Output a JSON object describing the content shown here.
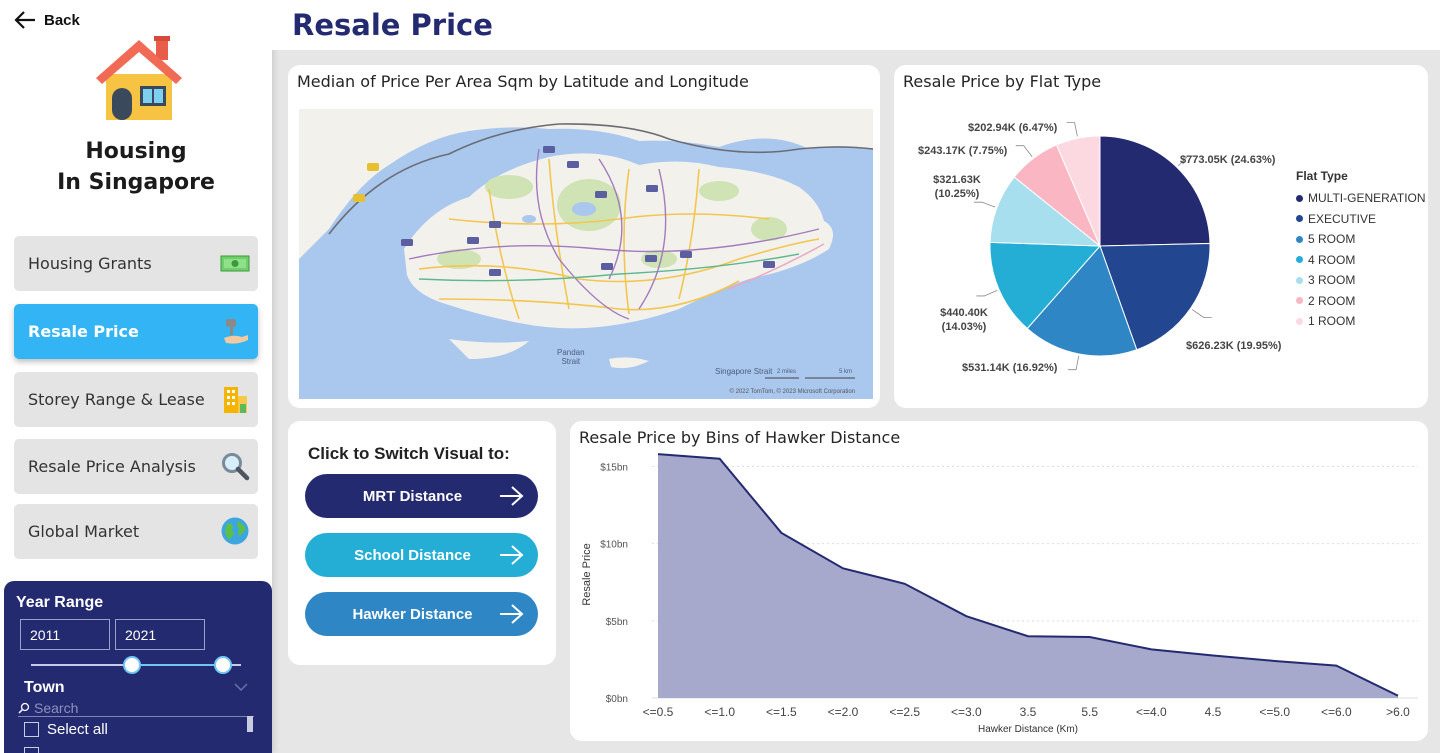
{
  "sidebar": {
    "back_label": "Back",
    "brand_line1": "Housing",
    "brand_line2": "In Singapore",
    "nav": [
      {
        "label": "Housing Grants",
        "icon": "money-icon",
        "active": false
      },
      {
        "label": "Resale Price",
        "icon": "hand-key-icon",
        "active": true
      },
      {
        "label": "Storey Range & Lease",
        "icon": "building-icon",
        "active": false
      },
      {
        "label": "Resale Price Analysis",
        "icon": "magnifier-icon",
        "active": false
      },
      {
        "label": "Global Market",
        "icon": "globe-icon",
        "active": false
      }
    ],
    "filters": {
      "year_range_title": "Year Range",
      "year_start": "2011",
      "year_end": "2021",
      "town_title": "Town",
      "search_placeholder": "Search",
      "select_all_label": "Select all"
    }
  },
  "header": {
    "title": "Resale Price"
  },
  "map_card": {
    "title": "Median of Price Per Area Sqm by Latitude and Longitude",
    "strait_1": "Pandan\nStrait",
    "strait_2": "Singapore Strait",
    "scale_miles": "2 miles",
    "scale_km": "5 km",
    "attribution": "© 2022 TomTom, © 2023 Microsoft Corporation"
  },
  "pie_card": {
    "title": "Resale Price by Flat Type",
    "legend_title": "Flat Type",
    "slices": [
      {
        "name": "MULTI-GENERATION",
        "label": "$773.05K (24.63%)",
        "percent": 24.63,
        "color": "#232a70"
      },
      {
        "name": "EXECUTIVE",
        "label": "$626.23K (19.95%)",
        "percent": 19.95,
        "color": "#22468f"
      },
      {
        "name": "5 ROOM",
        "label": "$531.14K (16.92%)",
        "percent": 16.92,
        "color": "#2f86c4"
      },
      {
        "name": "4 ROOM",
        "label": "$440.40K (14.03%)",
        "percent": 14.03,
        "color": "#24aed6"
      },
      {
        "name": "3 ROOM",
        "label": "$321.63K (10.25%)",
        "percent": 10.25,
        "color": "#a7dfee"
      },
      {
        "name": "2 ROOM",
        "label": "$243.17K (7.75%)",
        "percent": 7.75,
        "color": "#fbb6c3"
      },
      {
        "name": "1 ROOM",
        "label": "$202.94K (6.47%)",
        "percent": 6.47,
        "color": "#fcd9e0"
      }
    ]
  },
  "switch_card": {
    "title": "Click to Switch Visual to:",
    "buttons": [
      {
        "label": "MRT Distance",
        "color": "#232a70"
      },
      {
        "label": "School Distance",
        "color": "#24aed6"
      },
      {
        "label": "Hawker Distance",
        "color": "#2f86c4"
      }
    ]
  },
  "chart_data": {
    "type": "area",
    "title": "Resale Price by Bins of Hawker Distance",
    "xlabel": "Hawker Distance (Km)",
    "ylabel": "Resale Price",
    "categories": [
      "<=0.5",
      "<=1.0",
      "<=1.5",
      "<=2.0",
      "<=2.5",
      "<=3.0",
      "3.5",
      "5.5",
      "<=4.0",
      "4.5",
      "<=5.0",
      "<=6.0",
      ">6.0"
    ],
    "values": [
      15.8,
      15.5,
      10.7,
      8.4,
      7.4,
      5.3,
      4.0,
      3.95,
      3.15,
      2.75,
      2.4,
      2.1,
      0.15
    ],
    "unit": "bn",
    "yticks": [
      "$0bn",
      "$5bn",
      "$10bn",
      "$15bn"
    ],
    "ytick_values": [
      0,
      5,
      10,
      15
    ],
    "ylim": [
      0,
      16
    ],
    "grid": true,
    "fill_color": "#a6a8cc",
    "line_color": "#232a70"
  }
}
